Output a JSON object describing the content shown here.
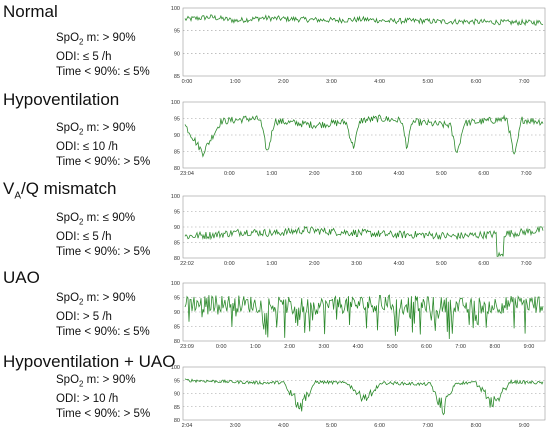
{
  "chart_data": [
    {
      "type": "line",
      "title": "Normal",
      "stats": {
        "spo2_prefix": "SpO",
        "spo2_sub": "2",
        "spo2_rest": " m: > 90%",
        "odi": "ODI: ≤ 5 /h",
        "time90": "Time < 90%: ≤ 5%"
      },
      "ylim": [
        85,
        100
      ],
      "ytick_labels": [
        "100",
        "95",
        "90",
        "85"
      ],
      "xtick_labels": [
        "0:00",
        "1:00",
        "2:00",
        "3:00",
        "4:00",
        "5:00",
        "6:00",
        "7:00"
      ],
      "series": [
        {
          "pattern": "stable",
          "values": [
            97.5,
            98.0,
            97.2,
            97.8,
            97.6,
            97.4,
            97.3,
            97.5,
            97.1,
            97.2,
            97.0,
            97.0,
            96.9,
            96.8,
            96.8
          ]
        }
      ],
      "color": "#2e8b2e"
    },
    {
      "type": "line",
      "title": "Hypoventilation",
      "stats": {
        "spo2_prefix": "SpO",
        "spo2_sub": "2",
        "spo2_rest": " m: > 90%",
        "odi": "ODI: ≤ 10 /h",
        "time90": "Time < 90%: > 5%"
      },
      "ylim": [
        80,
        100
      ],
      "ytick_labels": [
        "100",
        "95",
        "90",
        "85",
        "80"
      ],
      "xtick_labels": [
        "23:04",
        "0:00",
        "1:00",
        "2:00",
        "3:00",
        "4:00",
        "5:00",
        "6:00",
        "7:00"
      ],
      "series": [
        {
          "pattern": "hypovent",
          "values": [
            93,
            94,
            95,
            94,
            93,
            94,
            95,
            94,
            93,
            94,
            95,
            94
          ]
        }
      ],
      "color": "#2e8b2e"
    },
    {
      "type": "line",
      "title_pre": "V",
      "title_sub": "A",
      "title_post": "/Q mismatch",
      "stats": {
        "spo2_prefix": "SpO",
        "spo2_sub": "2",
        "spo2_rest": " m: ≤ 90%",
        "odi": "ODI: ≤ 5 /h",
        "time90": "Time < 90%: > 5%"
      },
      "ylim": [
        80,
        100
      ],
      "ytick_labels": [
        "100",
        "95",
        "90",
        "85",
        "80"
      ],
      "xtick_labels": [
        "22:02",
        "0:00",
        "1:00",
        "2:00",
        "3:00",
        "4:00",
        "5:00",
        "6:00",
        "7:00"
      ],
      "series": [
        {
          "pattern": "mismatch",
          "values": [
            87,
            87.5,
            88.5,
            88,
            89,
            88.5,
            88,
            87.5,
            87.5,
            87,
            87.5,
            88,
            89
          ]
        }
      ],
      "color": "#2e8b2e"
    },
    {
      "type": "line",
      "title": "UAO",
      "stats": {
        "spo2_prefix": "SpO",
        "spo2_sub": "2",
        "spo2_rest": " m: > 90%",
        "odi": "ODI: > 5 /h",
        "time90": "Time < 90%: ≤ 5%"
      },
      "ylim": [
        80,
        100
      ],
      "ytick_labels": [
        "100",
        "95",
        "90",
        "85",
        "80"
      ],
      "xtick_labels": [
        "23:09",
        "0:00",
        "1:00",
        "2:00",
        "3:00",
        "4:00",
        "5:00",
        "6:00",
        "7:00",
        "8:00",
        "9:00"
      ],
      "series": [
        {
          "pattern": "uao",
          "values": [
            93,
            93,
            92.5,
            92,
            92.5,
            93,
            92.5,
            92,
            92.5,
            93
          ]
        }
      ],
      "color": "#2e8b2e"
    },
    {
      "type": "line",
      "title": "Hypoventilation + UAO",
      "stats": {
        "spo2_prefix": "SpO",
        "spo2_sub": "2",
        "spo2_rest": " m: > 90%",
        "odi": "ODI: > 10 /h",
        "time90": "Time < 90%: > 5%"
      },
      "ylim": [
        80,
        100
      ],
      "ytick_labels": [
        "100",
        "95",
        "90",
        "85",
        "80"
      ],
      "xtick_labels": [
        "2:04",
        "3:00",
        "4:00",
        "5:00",
        "6:00",
        "7:00",
        "8:00",
        "9:00"
      ],
      "series": [
        {
          "pattern": "combo",
          "values": [
            95,
            94.5,
            94,
            94.5,
            94,
            94,
            93.5,
            94,
            94.5,
            94
          ]
        }
      ],
      "color": "#2e8b2e"
    }
  ]
}
